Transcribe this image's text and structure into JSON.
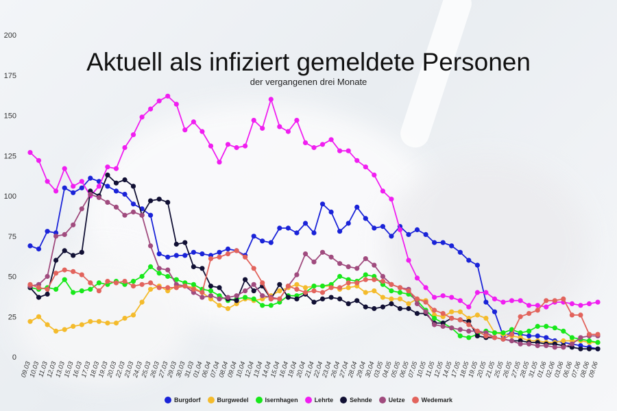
{
  "chart_data": {
    "type": "line",
    "title": "Aktuell als infiziert gemeldete Personen",
    "subtitle": "der vergangenen drei Monate",
    "ylim": [
      0,
      200
    ],
    "yticks": [
      "0",
      "25",
      "50",
      "75",
      "100",
      "125",
      "150",
      "175",
      "200"
    ],
    "grid": false,
    "legend_position": "bottom",
    "categories": [
      "09.03",
      "10.03",
      "11.03",
      "12.03",
      "13.03",
      "15.03",
      "16.03",
      "17.03",
      "18.03",
      "19.03",
      "20.03",
      "22.03",
      "23.03",
      "24.03",
      "25.03",
      "26.03",
      "27.03",
      "29.03",
      "30.03",
      "31.03",
      "01.04",
      "06.04",
      "07.04",
      "08.04",
      "09.04",
      "10.04",
      "12.04",
      "13.04",
      "14.04",
      "15.04",
      "16.04",
      "19.04",
      "20.04",
      "21.04",
      "22.04",
      "23.04",
      "26.04",
      "27.04",
      "28.04",
      "29.04",
      "30.04",
      "03.05",
      "04.05",
      "05.05",
      "06.05",
      "07.05",
      "10.05",
      "11.05",
      "12.05",
      "14.05",
      "17.05",
      "18.05",
      "19.05",
      "20.05",
      "21.05",
      "25.05",
      "26.05",
      "27.05",
      "28.05",
      "31.05",
      "01.06",
      "02.06",
      "03.06",
      "06.06",
      "07.06",
      "08.06",
      "09.06"
    ],
    "series": [
      {
        "name": "Burgdorf",
        "color": "#1a23d8",
        "values": [
          69,
          67,
          78,
          77,
          105,
          102,
          105,
          111,
          109,
          106,
          103,
          101,
          95,
          92,
          88,
          64,
          62,
          63,
          63,
          65,
          64,
          63,
          65,
          67,
          66,
          63,
          75,
          72,
          71,
          80,
          80,
          77,
          83,
          77,
          95,
          90,
          78,
          83,
          93,
          86,
          80,
          81,
          75,
          81,
          76,
          79,
          76,
          71,
          71,
          69,
          65,
          60,
          57,
          34,
          28,
          13,
          15,
          14,
          13,
          13,
          12,
          10,
          9,
          8,
          7,
          6,
          5
        ]
      },
      {
        "name": "Burgwedel",
        "color": "#f4bb2c",
        "values": [
          22,
          25,
          20,
          16,
          17,
          19,
          20,
          22,
          22,
          21,
          21,
          24,
          26,
          34,
          42,
          44,
          41,
          44,
          44,
          43,
          40,
          36,
          32,
          30,
          33,
          36,
          35,
          36,
          38,
          41,
          43,
          45,
          43,
          44,
          44,
          44,
          42,
          43,
          44,
          40,
          41,
          37,
          36,
          36,
          33,
          36,
          35,
          26,
          25,
          28,
          28,
          24,
          26,
          24,
          15,
          14,
          13,
          12,
          10,
          10,
          9,
          9,
          10,
          10,
          10,
          9,
          9
        ]
      },
      {
        "name": "Isernhagen",
        "color": "#17e81a",
        "values": [
          43,
          42,
          43,
          42,
          48,
          40,
          41,
          42,
          46,
          45,
          47,
          45,
          47,
          50,
          56,
          52,
          50,
          48,
          46,
          45,
          42,
          41,
          38,
          35,
          36,
          37,
          36,
          32,
          32,
          34,
          38,
          38,
          40,
          44,
          44,
          45,
          50,
          48,
          47,
          51,
          50,
          45,
          41,
          40,
          39,
          35,
          29,
          24,
          21,
          18,
          13,
          12,
          14,
          16,
          15,
          15,
          17,
          15,
          16,
          19,
          19,
          18,
          16,
          12,
          11,
          10,
          9
        ]
      },
      {
        "name": "Lehrte",
        "color": "#f01ef0",
        "values": [
          127,
          122,
          109,
          103,
          117,
          106,
          109,
          100,
          106,
          118,
          117,
          130,
          138,
          149,
          154,
          159,
          162,
          157,
          141,
          146,
          140,
          131,
          121,
          132,
          130,
          131,
          147,
          142,
          160,
          143,
          140,
          147,
          133,
          130,
          132,
          135,
          128,
          128,
          122,
          118,
          113,
          103,
          98,
          79,
          60,
          49,
          43,
          37,
          38,
          37,
          35,
          31,
          40,
          40,
          36,
          34,
          35,
          35,
          32,
          32,
          31,
          34,
          34,
          33,
          32,
          33,
          34
        ]
      },
      {
        "name": "Sehnde",
        "color": "#111034",
        "values": [
          43,
          37,
          39,
          60,
          66,
          63,
          65,
          103,
          100,
          113,
          108,
          110,
          106,
          88,
          97,
          98,
          96,
          70,
          71,
          56,
          55,
          44,
          43,
          36,
          35,
          48,
          41,
          44,
          36,
          45,
          37,
          36,
          39,
          34,
          36,
          37,
          36,
          33,
          35,
          31,
          30,
          31,
          33,
          30,
          30,
          27,
          27,
          21,
          21,
          24,
          23,
          22,
          13,
          12,
          12,
          11,
          10,
          10,
          9,
          9,
          8,
          8,
          7,
          6,
          5,
          5,
          5
        ]
      },
      {
        "name": "Uetze",
        "color": "#a04b7e",
        "values": [
          44,
          45,
          50,
          75,
          76,
          82,
          92,
          101,
          99,
          96,
          93,
          88,
          90,
          88,
          69,
          55,
          54,
          45,
          44,
          40,
          37,
          38,
          36,
          37,
          38,
          41,
          45,
          38,
          37,
          36,
          44,
          51,
          64,
          59,
          65,
          62,
          58,
          56,
          55,
          61,
          57,
          50,
          45,
          43,
          42,
          33,
          28,
          20,
          19,
          18,
          17,
          16,
          16,
          15,
          12,
          11,
          10,
          8,
          8,
          7,
          7,
          6,
          6,
          8,
          12,
          13,
          13
        ]
      },
      {
        "name": "Wedemark",
        "color": "#e2635c",
        "values": [
          45,
          43,
          42,
          52,
          54,
          53,
          51,
          46,
          41,
          47,
          46,
          47,
          44,
          45,
          46,
          43,
          43,
          43,
          44,
          42,
          40,
          61,
          62,
          64,
          66,
          62,
          55,
          46,
          36,
          36,
          44,
          42,
          40,
          41,
          40,
          43,
          43,
          46,
          46,
          48,
          48,
          47,
          45,
          43,
          41,
          36,
          34,
          29,
          27,
          24,
          23,
          20,
          16,
          13,
          12,
          11,
          14,
          25,
          27,
          29,
          35,
          35,
          36,
          26,
          26,
          14,
          14
        ]
      }
    ]
  }
}
